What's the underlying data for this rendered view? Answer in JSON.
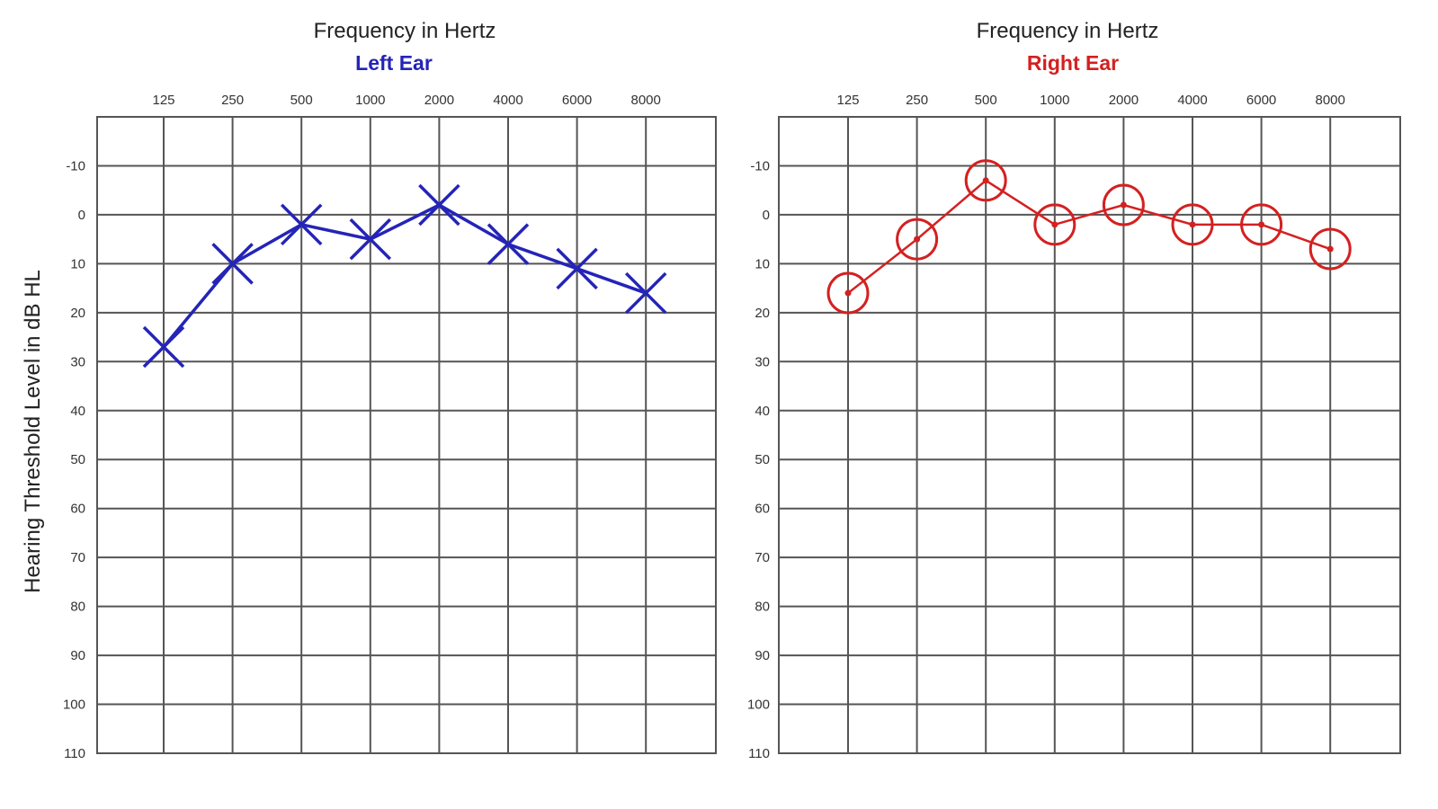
{
  "chart_data": [
    {
      "type": "line",
      "title": "Frequency in Hertz",
      "subtitle": "Left Ear",
      "subtitle_color": "#2424b8",
      "color": "#2424b8",
      "marker": "x-icon",
      "x": [
        "125",
        "250",
        "500",
        "1000",
        "2000",
        "4000",
        "6000",
        "8000"
      ],
      "series": [
        {
          "name": "",
          "values": [
            27,
            10,
            2,
            5,
            -2,
            6,
            11,
            16
          ]
        }
      ],
      "ylabel": "Hearing Threshold Level in dB HL",
      "y_ticks": [
        -10,
        0,
        10,
        20,
        30,
        40,
        50,
        60,
        70,
        80,
        90,
        100,
        110
      ],
      "ylim": [
        -20,
        110
      ],
      "y_inverted": true,
      "grid": true,
      "legend": "none"
    },
    {
      "type": "line",
      "title": "Frequency in Hertz",
      "subtitle": "Right Ear",
      "subtitle_color": "#d42020",
      "color": "#d42020",
      "marker": "circle-icon",
      "x": [
        "125",
        "250",
        "500",
        "1000",
        "2000",
        "4000",
        "6000",
        "8000"
      ],
      "series": [
        {
          "name": "",
          "values": [
            16,
            5,
            -7,
            2,
            -2,
            2,
            2,
            7
          ]
        }
      ],
      "ylabel": "",
      "y_ticks": [
        -10,
        0,
        10,
        20,
        30,
        40,
        50,
        60,
        70,
        80,
        90,
        100,
        110
      ],
      "ylim": [
        -20,
        110
      ],
      "y_inverted": true,
      "grid": true,
      "legend": "none"
    }
  ]
}
